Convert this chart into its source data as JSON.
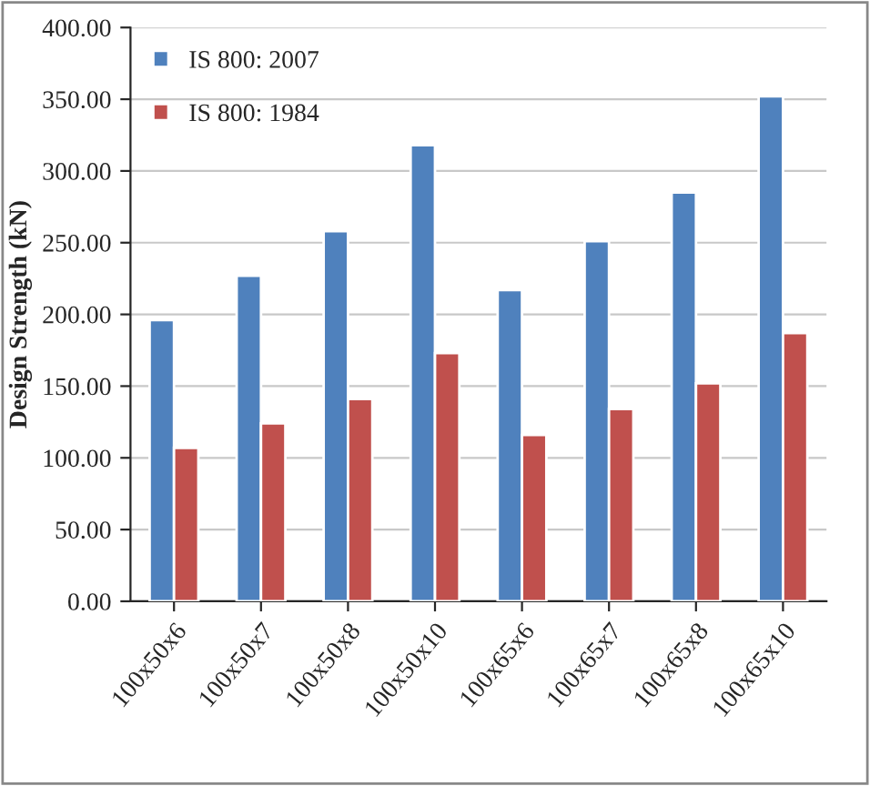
{
  "chart_data": {
    "type": "bar",
    "ylabel": "Design Strength (kN)",
    "categories": [
      "100x50x6",
      "100x50x7",
      "100x50x8",
      "100x50x10",
      "100x65x6",
      "100x65x7",
      "100x65x8",
      "100x65x10"
    ],
    "series": [
      {
        "name": "IS 800: 2007",
        "color": "#4f81bd",
        "values": [
          196,
          227,
          258,
          318,
          217,
          251,
          285,
          352
        ]
      },
      {
        "name": "IS 800: 1984",
        "color": "#c0504d",
        "values": [
          107,
          124,
          141,
          173,
          116,
          134,
          152,
          187
        ]
      }
    ],
    "ylim": [
      0,
      400
    ],
    "yticks": [
      {
        "value": 0,
        "label": "0.00"
      },
      {
        "value": 50,
        "label": "50.00"
      },
      {
        "value": 100,
        "label": "100.00"
      },
      {
        "value": 150,
        "label": "150.00"
      },
      {
        "value": 200,
        "label": "200.00"
      },
      {
        "value": 250,
        "label": "250.00"
      },
      {
        "value": 300,
        "label": "300.00"
      },
      {
        "value": 350,
        "label": "350.00"
      },
      {
        "value": 400,
        "label": "400.00"
      }
    ],
    "grid": "y",
    "legend": "top left"
  }
}
